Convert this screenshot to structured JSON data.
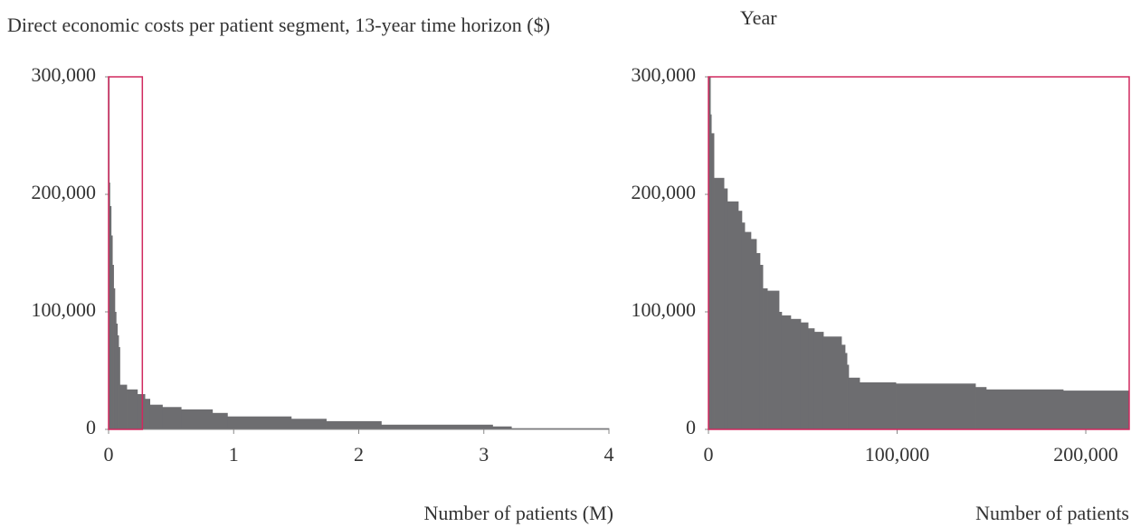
{
  "chart_data": [
    {
      "type": "step",
      "title": "Direct economic costs per patient segment, 13-year time horizon ($)",
      "xlabel": "Number of patients (M)",
      "x": [
        0,
        0.005,
        0.01,
        0.02,
        0.03,
        0.04,
        0.05,
        0.06,
        0.07,
        0.08,
        0.09,
        0.145,
        0.23,
        0.29,
        0.33,
        0.43,
        0.58,
        0.83,
        0.95,
        1.46,
        1.74,
        2.18,
        3.07,
        3.22
      ],
      "values": [
        300000,
        210000,
        190000,
        165000,
        140000,
        120000,
        100000,
        90000,
        80000,
        70000,
        38000,
        34000,
        30000,
        26000,
        21000,
        19000,
        17000,
        14000,
        11000,
        9000,
        7000,
        4000,
        2500,
        1000
      ],
      "color": "#6d6d70",
      "xlim": [
        0,
        4
      ],
      "xticks": [
        0,
        1,
        2,
        3,
        4
      ],
      "ylim": [
        0,
        300000
      ],
      "yticks": [
        0,
        {
          "value": 100000,
          "label": "100,000"
        },
        {
          "value": 200000,
          "label": "200,000"
        },
        {
          "value": 300000,
          "label": "300,000"
        }
      ],
      "highlight": [
        0,
        0.27
      ],
      "highlight_color": "#d0285f"
    },
    {
      "type": "step",
      "title": "Year",
      "xlabel": "Number of patients",
      "x": [
        0,
        1000,
        1500,
        2900,
        8200,
        10000,
        15800,
        17700,
        19200,
        22500,
        25400,
        27300,
        28800,
        31200,
        37400,
        38800,
        43600,
        48900,
        52800,
        56100,
        60900,
        70500,
        72400,
        73400,
        74300,
        80100,
        99300,
        141500,
        147200,
        188000
      ],
      "values": [
        300000,
        268000,
        252000,
        214000,
        205000,
        194000,
        186000,
        176000,
        168000,
        162000,
        150000,
        140000,
        120000,
        118000,
        100000,
        97000,
        94000,
        91000,
        86000,
        83000,
        79000,
        72000,
        65000,
        55000,
        44000,
        40000,
        39000,
        36000,
        34000,
        33000
      ],
      "color": "#6d6d70",
      "xlim": [
        0,
        223000
      ],
      "xticks": [
        0,
        {
          "value": 100000,
          "label": "100,000"
        },
        {
          "value": 200000,
          "label": "200,000"
        }
      ],
      "ylim": [
        0,
        300000
      ],
      "yticks": [
        0,
        {
          "value": 100000,
          "label": "100,000"
        },
        {
          "value": 200000,
          "label": "200,000"
        },
        {
          "value": 300000,
          "label": "300,000"
        }
      ],
      "highlight": [
        0,
        223000
      ],
      "highlight_color": "#d0285f"
    }
  ]
}
